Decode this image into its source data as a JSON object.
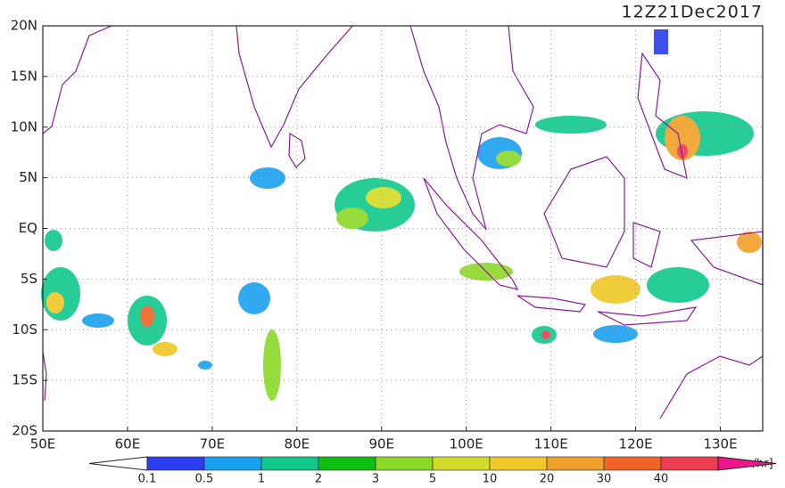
{
  "title": "12Z21Dec2017",
  "lat_labels": [
    "20N",
    "15N",
    "10N",
    "5N",
    "EQ",
    "5S",
    "10S",
    "15S",
    "20S"
  ],
  "lon_labels": [
    "50E",
    "60E",
    "70E",
    "80E",
    "90E",
    "100E",
    "110E",
    "120E",
    "130E"
  ],
  "colorbar": {
    "labels": [
      "0.1",
      "0.5",
      "1",
      "2",
      "3",
      "5",
      "10",
      "20",
      "30",
      "40"
    ],
    "colors": [
      "#2c3cf0",
      "#1aa0f0",
      "#10c88c",
      "#10c010",
      "#8cd828",
      "#d2dc28",
      "#f0c828",
      "#f0a028",
      "#f06428",
      "#f03c50"
    ],
    "over_color": "#f0148c",
    "under_color": "#ffffff",
    "unit": "[mm/hr]"
  }
}
